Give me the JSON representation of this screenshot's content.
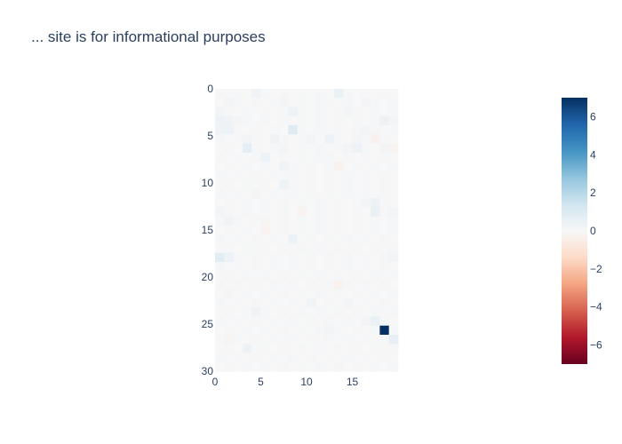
{
  "chart_data": {
    "type": "heatmap",
    "title": "... site is for informational purposes",
    "xlabel": "",
    "ylabel": "",
    "x_ticks": [
      0,
      5,
      10,
      15
    ],
    "y_ticks": [
      0,
      5,
      10,
      15,
      20,
      25,
      30
    ],
    "xlim": [
      0,
      20
    ],
    "ylim": [
      0,
      30
    ],
    "colorscale": "RdBu",
    "zmin": -7,
    "zmax": 7,
    "colorbar_ticks": [
      6,
      4,
      2,
      0,
      -2,
      -4,
      -6
    ],
    "colorbar_tick_labels": [
      "6",
      "4",
      "2",
      "0",
      "−2",
      "−4",
      "−6"
    ],
    "grid": false,
    "z": [
      [
        0.1,
        0.0,
        0.1,
        0.0,
        0.3,
        0.1,
        0.0,
        0.1,
        0.0,
        0.1,
        0.0,
        0.1,
        0.0,
        0.5,
        0.1,
        0.0,
        0.1,
        0.0,
        0.1,
        0.0
      ],
      [
        0.0,
        0.2,
        0.1,
        0.0,
        0.1,
        0.0,
        0.1,
        0.2,
        0.0,
        0.1,
        0.0,
        0.1,
        0.1,
        0.0,
        0.1,
        0.0,
        0.2,
        0.1,
        0.0,
        0.1
      ],
      [
        0.2,
        0.1,
        0.0,
        0.1,
        0.0,
        0.1,
        0.0,
        0.1,
        0.4,
        0.1,
        0.0,
        0.1,
        0.0,
        0.1,
        0.2,
        0.1,
        0.0,
        0.1,
        0.0,
        0.1
      ],
      [
        0.4,
        0.3,
        0.2,
        0.1,
        0.0,
        0.1,
        0.0,
        0.1,
        0.0,
        0.1,
        0.0,
        0.1,
        0.0,
        0.1,
        0.0,
        0.1,
        0.0,
        0.1,
        0.4,
        0.2
      ],
      [
        0.3,
        0.4,
        0.1,
        0.0,
        0.1,
        0.0,
        0.1,
        0.0,
        0.9,
        0.1,
        0.0,
        0.1,
        0.0,
        0.1,
        0.0,
        0.1,
        0.2,
        0.1,
        0.0,
        0.1
      ],
      [
        0.1,
        0.0,
        0.1,
        0.2,
        0.1,
        0.0,
        0.3,
        0.1,
        0.0,
        0.1,
        0.2,
        0.0,
        0.4,
        0.1,
        0.0,
        0.2,
        0.1,
        -0.3,
        0.1,
        0.0
      ],
      [
        0.0,
        0.1,
        0.0,
        0.7,
        0.1,
        0.0,
        0.1,
        0.2,
        0.0,
        0.1,
        0.0,
        0.1,
        0.0,
        0.1,
        0.2,
        0.4,
        0.1,
        0.0,
        0.2,
        -0.2
      ],
      [
        0.1,
        0.0,
        0.1,
        0.0,
        0.1,
        0.4,
        0.0,
        0.1,
        0.0,
        0.1,
        0.0,
        0.1,
        0.1,
        0.0,
        0.1,
        0.0,
        0.1,
        0.0,
        0.1,
        0.0
      ],
      [
        0.0,
        0.1,
        0.0,
        0.1,
        0.0,
        0.1,
        0.0,
        0.3,
        0.1,
        0.0,
        0.1,
        0.0,
        0.1,
        -0.3,
        0.0,
        0.1,
        0.0,
        0.1,
        0.0,
        0.1
      ],
      [
        0.1,
        0.0,
        0.1,
        0.0,
        0.1,
        0.0,
        0.1,
        0.0,
        0.1,
        0.0,
        0.1,
        0.0,
        0.1,
        0.0,
        0.1,
        0.0,
        0.1,
        0.0,
        0.1,
        0.0
      ],
      [
        0.0,
        0.1,
        0.0,
        0.1,
        0.0,
        0.1,
        0.0,
        0.4,
        0.1,
        0.0,
        0.1,
        0.0,
        0.1,
        0.0,
        0.1,
        0.0,
        0.1,
        0.0,
        0.1,
        0.0
      ],
      [
        0.1,
        0.0,
        0.1,
        0.0,
        0.2,
        0.0,
        0.1,
        0.0,
        0.1,
        0.0,
        0.1,
        0.0,
        0.1,
        0.0,
        0.1,
        0.0,
        0.1,
        0.0,
        0.1,
        0.0
      ],
      [
        0.0,
        0.1,
        0.0,
        0.1,
        0.0,
        0.1,
        0.0,
        0.1,
        0.0,
        0.1,
        0.0,
        0.1,
        0.0,
        0.1,
        0.0,
        0.1,
        0.2,
        0.4,
        0.1,
        0.0
      ],
      [
        0.2,
        0.1,
        0.0,
        0.1,
        0.0,
        0.1,
        0.0,
        0.1,
        0.0,
        -0.2,
        0.0,
        0.1,
        0.0,
        0.1,
        0.0,
        0.1,
        0.0,
        0.5,
        0.1,
        0.2
      ],
      [
        0.1,
        0.3,
        0.1,
        0.0,
        0.1,
        -0.1,
        0.0,
        0.1,
        0.0,
        0.1,
        0.0,
        0.1,
        0.0,
        0.1,
        0.0,
        0.1,
        0.0,
        0.1,
        0.0,
        0.1
      ],
      [
        0.0,
        0.1,
        0.0,
        0.1,
        0.0,
        -0.2,
        0.0,
        0.1,
        0.0,
        0.1,
        0.0,
        0.1,
        0.0,
        0.1,
        0.0,
        0.1,
        0.0,
        0.1,
        0.0,
        0.1
      ],
      [
        0.1,
        0.0,
        0.1,
        0.0,
        0.1,
        0.0,
        0.1,
        0.0,
        0.4,
        0.0,
        0.1,
        0.0,
        0.1,
        0.0,
        0.1,
        0.0,
        0.1,
        0.0,
        0.1,
        0.0
      ],
      [
        0.0,
        0.1,
        0.0,
        0.1,
        0.0,
        0.1,
        0.0,
        0.1,
        0.0,
        0.1,
        0.0,
        0.1,
        0.0,
        0.1,
        0.0,
        0.1,
        0.0,
        0.1,
        0.0,
        0.1
      ],
      [
        0.8,
        0.4,
        0.1,
        0.0,
        0.1,
        0.0,
        0.1,
        0.0,
        0.1,
        0.0,
        0.1,
        0.0,
        0.1,
        0.0,
        0.1,
        0.0,
        0.1,
        0.0,
        0.1,
        0.2
      ],
      [
        0.1,
        0.0,
        0.1,
        0.0,
        0.1,
        0.0,
        0.1,
        0.0,
        0.1,
        0.0,
        0.1,
        0.0,
        0.1,
        0.0,
        0.1,
        0.0,
        0.1,
        0.0,
        0.1,
        0.0
      ],
      [
        0.0,
        0.1,
        0.0,
        0.1,
        0.0,
        0.1,
        0.0,
        0.1,
        0.0,
        0.1,
        0.0,
        0.1,
        0.0,
        0.1,
        0.0,
        0.1,
        0.0,
        0.1,
        0.0,
        0.1
      ],
      [
        0.1,
        0.0,
        0.1,
        0.0,
        0.1,
        0.0,
        0.1,
        0.0,
        0.1,
        0.0,
        0.1,
        0.0,
        0.1,
        -0.3,
        0.1,
        0.0,
        0.1,
        0.0,
        0.1,
        0.0
      ],
      [
        0.0,
        -0.1,
        0.0,
        0.1,
        0.0,
        0.1,
        0.0,
        0.1,
        0.0,
        0.1,
        0.0,
        0.1,
        0.0,
        0.1,
        0.0,
        0.1,
        0.0,
        0.1,
        0.0,
        0.1
      ],
      [
        0.1,
        0.0,
        0.1,
        0.0,
        0.1,
        0.0,
        0.1,
        0.0,
        0.1,
        0.0,
        0.3,
        0.0,
        0.1,
        0.0,
        0.2,
        0.0,
        0.1,
        0.0,
        0.1,
        0.0
      ],
      [
        0.0,
        0.1,
        0.0,
        0.1,
        0.3,
        0.1,
        0.0,
        0.1,
        0.0,
        0.1,
        0.0,
        0.1,
        0.0,
        0.1,
        0.0,
        0.1,
        0.0,
        0.1,
        0.0,
        0.1
      ],
      [
        0.1,
        0.0,
        0.1,
        0.0,
        0.1,
        0.0,
        0.1,
        0.0,
        0.1,
        0.0,
        0.1,
        0.0,
        0.1,
        0.0,
        0.1,
        0.0,
        0.2,
        0.5,
        0.1,
        0.0
      ],
      [
        0.0,
        0.1,
        0.0,
        0.1,
        0.0,
        0.1,
        0.0,
        0.1,
        0.0,
        0.1,
        0.0,
        0.1,
        0.2,
        0.1,
        0.0,
        0.1,
        0.0,
        0.1,
        7.0,
        0.1
      ],
      [
        0.1,
        -0.1,
        0.1,
        0.0,
        0.1,
        0.0,
        0.1,
        0.0,
        0.1,
        0.0,
        0.1,
        0.0,
        0.1,
        0.0,
        0.1,
        0.0,
        0.1,
        0.0,
        0.1,
        0.6
      ],
      [
        0.0,
        0.1,
        0.0,
        0.4,
        0.0,
        0.1,
        0.0,
        0.1,
        0.0,
        0.1,
        0.0,
        0.1,
        0.0,
        0.1,
        0.0,
        0.1,
        0.0,
        0.1,
        0.0,
        0.1
      ],
      [
        0.1,
        0.0,
        0.1,
        0.0,
        0.1,
        0.0,
        0.1,
        0.0,
        0.1,
        0.0,
        0.1,
        0.0,
        0.1,
        0.0,
        0.1,
        0.0,
        0.1,
        0.0,
        0.1,
        0.0
      ],
      [
        0.0,
        0.1,
        0.0,
        0.1,
        0.0,
        0.1,
        0.0,
        0.1,
        0.0,
        0.1,
        0.0,
        0.1,
        0.0,
        -0.1,
        0.0,
        0.1,
        0.0,
        0.1,
        0.0,
        0.1
      ]
    ]
  }
}
